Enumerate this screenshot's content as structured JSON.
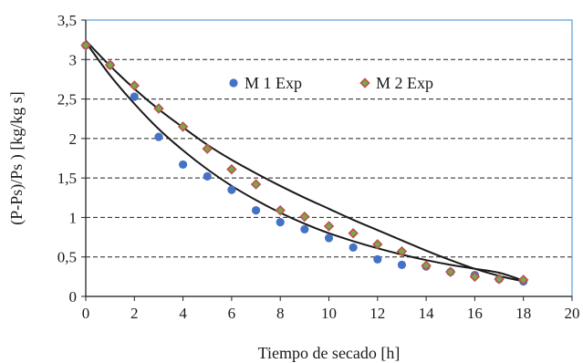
{
  "chart_data": {
    "type": "scatter",
    "title": "",
    "xlabel": "Tiempo de secado  [h]",
    "ylabel": "(P-Ps)/Ps )   [kg/kg s]",
    "xlim": [
      0,
      20
    ],
    "ylim": [
      0,
      3.5
    ],
    "x_ticks": [
      0,
      2,
      4,
      6,
      8,
      10,
      12,
      14,
      16,
      18,
      20
    ],
    "x_tick_labels": [
      "0",
      "2",
      "4",
      "6",
      "8",
      "10",
      "12",
      "14",
      "16",
      "18",
      "20"
    ],
    "y_ticks": [
      0,
      0.5,
      1,
      1.5,
      2,
      2.5,
      3,
      3.5
    ],
    "y_tick_labels": [
      "0",
      "0,5",
      "1",
      "1,5",
      "2",
      "2,5",
      "3",
      "3,5"
    ],
    "grid": "horizontal dashed",
    "legend_position": "top-center",
    "plot_border_color": "#5b9bd5",
    "series": [
      {
        "name": "M 1 Exp",
        "marker": "circle",
        "color": "#4472c4",
        "x": [
          0,
          1,
          2,
          3,
          4,
          5,
          6,
          7,
          8,
          9,
          10,
          11,
          12,
          13,
          14,
          15,
          16,
          17,
          18
        ],
        "y": [
          3.18,
          2.93,
          2.53,
          2.02,
          1.67,
          1.52,
          1.35,
          1.09,
          0.94,
          0.85,
          0.74,
          0.62,
          0.47,
          0.4,
          0.38,
          0.31,
          0.27,
          0.22,
          0.19
        ]
      },
      {
        "name": "M 2 Exp",
        "marker": "diamond",
        "color": "#70ad47",
        "edge_color": "#c0504d",
        "x": [
          0,
          1,
          2,
          3,
          4,
          5,
          6,
          7,
          8,
          9,
          10,
          11,
          12,
          13,
          14,
          15,
          16,
          17,
          18
        ],
        "y": [
          3.18,
          2.93,
          2.67,
          2.38,
          2.15,
          1.87,
          1.61,
          1.42,
          1.09,
          1.01,
          0.89,
          0.8,
          0.66,
          0.57,
          0.39,
          0.31,
          0.25,
          0.22,
          0.21
        ]
      }
    ],
    "fit_curves": [
      {
        "for": "M 1 Exp",
        "color": "#1a1a1a",
        "x": [
          0,
          1,
          2,
          3,
          4,
          5,
          6,
          7,
          8,
          9,
          10,
          11,
          12,
          13,
          14,
          15,
          16,
          17,
          18
        ],
        "y": [
          3.22,
          2.8,
          2.44,
          2.12,
          1.85,
          1.61,
          1.4,
          1.22,
          1.06,
          0.92,
          0.8,
          0.7,
          0.61,
          0.53,
          0.46,
          0.4,
          0.35,
          0.3,
          0.2
        ]
      },
      {
        "for": "M 2 Exp",
        "color": "#1a1a1a",
        "x": [
          0,
          1,
          2,
          3,
          4,
          5,
          6,
          7,
          8,
          9,
          10,
          11,
          12,
          13,
          14,
          15,
          16,
          17,
          18
        ],
        "y": [
          3.24,
          2.92,
          2.63,
          2.37,
          2.14,
          1.92,
          1.73,
          1.56,
          1.4,
          1.25,
          1.11,
          0.97,
          0.84,
          0.71,
          0.58,
          0.46,
          0.35,
          0.26,
          0.19
        ]
      }
    ]
  }
}
